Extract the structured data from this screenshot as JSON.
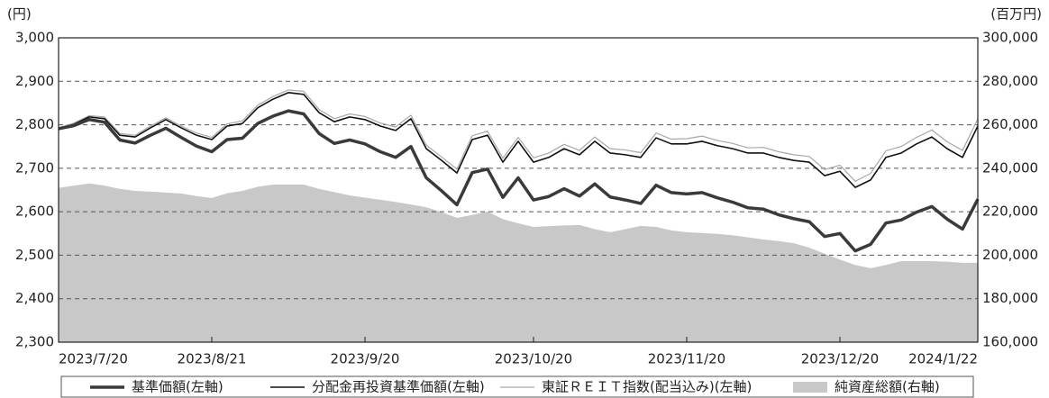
{
  "chart_data": {
    "type": "line",
    "y_unit_label": "(円)",
    "y2_unit_label": "(百万円)",
    "categories": [
      "2023/7/20",
      null,
      null,
      null,
      null,
      null,
      null,
      null,
      null,
      null,
      "2023/8/21",
      null,
      null,
      null,
      null,
      null,
      null,
      null,
      null,
      null,
      "2023/9/20",
      null,
      null,
      null,
      null,
      null,
      null,
      null,
      null,
      null,
      null,
      "2023/10/20",
      null,
      null,
      null,
      null,
      null,
      null,
      null,
      null,
      null,
      "2023/11/20",
      null,
      null,
      null,
      null,
      null,
      null,
      null,
      null,
      null,
      "2023/12/20",
      null,
      null,
      null,
      null,
      null,
      null,
      null,
      null,
      "2024/1/22"
    ],
    "ylim": [
      2300,
      3000
    ],
    "yticks": [
      {
        "value": 2300,
        "label": "2,300"
      },
      {
        "value": 2400,
        "label": "2,400"
      },
      {
        "value": 2500,
        "label": "2,500"
      },
      {
        "value": 2600,
        "label": "2,600"
      },
      {
        "value": 2700,
        "label": "2,700"
      },
      {
        "value": 2800,
        "label": "2,800"
      },
      {
        "value": 2900,
        "label": "2,900"
      },
      {
        "value": 3000,
        "label": "3,000"
      }
    ],
    "y2lim": [
      160000,
      300000
    ],
    "y2ticks": [
      {
        "value": 160000,
        "label": "160,000"
      },
      {
        "value": 180000,
        "label": "180,000"
      },
      {
        "value": 200000,
        "label": "200,000"
      },
      {
        "value": 220000,
        "label": "220,000"
      },
      {
        "value": 240000,
        "label": "240,000"
      },
      {
        "value": 260000,
        "label": "260,000"
      },
      {
        "value": 280000,
        "label": "280,000"
      },
      {
        "value": 300000,
        "label": "300,000"
      }
    ],
    "grid": true,
    "legend": "bottom",
    "series": [
      {
        "name": "基準価額(左軸)",
        "color": "#3a3a3a",
        "values": [
          2791,
          2798,
          2812,
          2806,
          2765,
          2758,
          2776,
          2792,
          2771,
          2751,
          2738,
          2766,
          2769,
          2803,
          2820,
          2832,
          2825,
          2780,
          2757,
          2765,
          2756,
          2738,
          2725,
          2750,
          2678,
          2648,
          2616,
          2690,
          2698,
          2633,
          2678,
          2627,
          2635,
          2653,
          2636,
          2664,
          2634,
          2627,
          2619,
          2661,
          2644,
          2641,
          2644,
          2632,
          2622,
          2609,
          2606,
          2593,
          2584,
          2577,
          2543,
          2550,
          2510,
          2525,
          2574,
          2581,
          2599,
          2612,
          2583,
          2560,
          2629
        ]
      },
      {
        "name": "分配金再投資基準価額(左軸)",
        "color": "#111111",
        "values": [
          2791,
          2801,
          2818,
          2814,
          2776,
          2772,
          2793,
          2812,
          2793,
          2776,
          2766,
          2797,
          2803,
          2839,
          2859,
          2874,
          2870,
          2828,
          2807,
          2818,
          2812,
          2797,
          2787,
          2814,
          2745,
          2718,
          2689,
          2766,
          2776,
          2714,
          2762,
          2714,
          2725,
          2745,
          2731,
          2762,
          2735,
          2731,
          2725,
          2770,
          2756,
          2756,
          2762,
          2752,
          2745,
          2735,
          2735,
          2725,
          2718,
          2714,
          2683,
          2693,
          2656,
          2673,
          2725,
          2735,
          2756,
          2772,
          2745,
          2725,
          2797
        ]
      },
      {
        "name": "東証ＲＥＩＴ指数(配当込み)(左軸)",
        "color": "#a8a8a8",
        "values": [
          2793,
          2804,
          2821,
          2818,
          2780,
          2776,
          2797,
          2816,
          2797,
          2781,
          2771,
          2802,
          2809,
          2845,
          2865,
          2880,
          2877,
          2835,
          2814,
          2825,
          2819,
          2804,
          2795,
          2822,
          2753,
          2726,
          2698,
          2775,
          2785,
          2723,
          2771,
          2724,
          2735,
          2755,
          2741,
          2772,
          2745,
          2742,
          2736,
          2781,
          2767,
          2768,
          2774,
          2764,
          2757,
          2747,
          2748,
          2738,
          2731,
          2727,
          2697,
          2707,
          2670,
          2688,
          2740,
          2750,
          2771,
          2788,
          2761,
          2741,
          2813
        ]
      },
      {
        "name": "純資産総額(右軸)",
        "color": "#c8c8c8",
        "type": "area",
        "axis": "y2",
        "values": [
          231000,
          232000,
          233000,
          232000,
          230500,
          229600,
          229200,
          228800,
          228400,
          227200,
          226300,
          228500,
          229600,
          231500,
          232500,
          232500,
          232500,
          230500,
          229000,
          227500,
          226500,
          225500,
          224500,
          223300,
          222100,
          219800,
          217200,
          218500,
          220100,
          216600,
          214700,
          213000,
          213400,
          213700,
          213900,
          212000,
          210600,
          212000,
          213500,
          213000,
          211400,
          210600,
          210200,
          209800,
          209200,
          208200,
          207200,
          206500,
          205500,
          203500,
          200700,
          198000,
          195500,
          194000,
          195500,
          197300,
          197300,
          197300,
          197000,
          196500,
          196500
        ]
      }
    ]
  }
}
